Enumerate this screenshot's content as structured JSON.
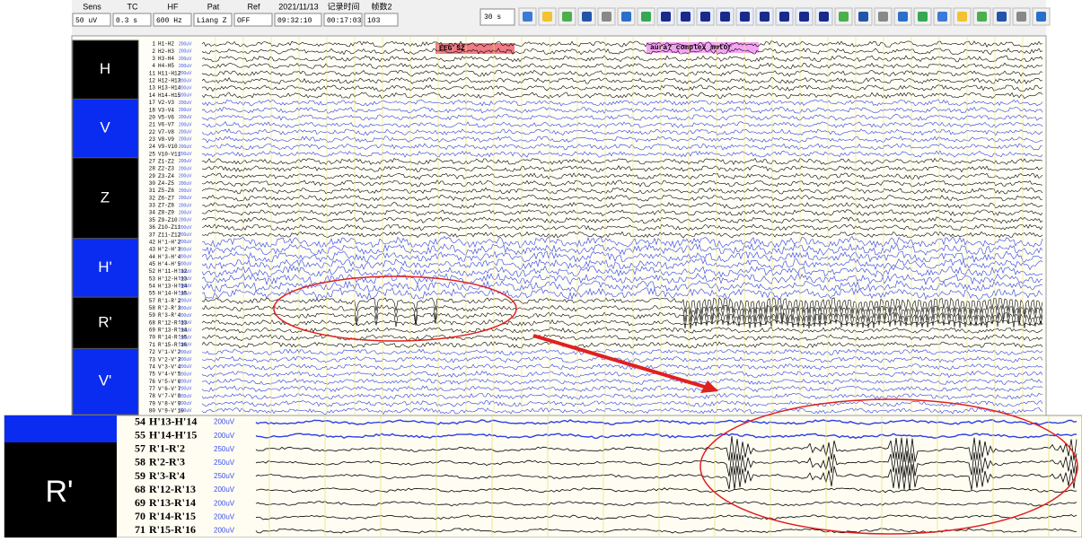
{
  "toolbar": {
    "fields": [
      {
        "header": "Sens",
        "value": "50 uV"
      },
      {
        "header": "TC",
        "value": "0.3 s"
      },
      {
        "header": "HF",
        "value": "600 Hz"
      },
      {
        "header": "Pat",
        "value": "Liang Z"
      },
      {
        "header": "Ref",
        "value": "OFF"
      },
      {
        "header": "2021/11/13",
        "value": "09:32:10"
      },
      {
        "header": "记录时间",
        "value": "00:17:03"
      },
      {
        "header": "帧数2",
        "value": "103"
      }
    ],
    "page_length": "30 s"
  },
  "annotations": [
    {
      "text": "EEG SZ"
    },
    {
      "text": "aura? complex motor"
    }
  ],
  "groups": [
    {
      "label": "H",
      "bg": "#000000",
      "trace": "#000000",
      "channels": [
        {
          "num": "1",
          "name": "H1-H2",
          "scale": "200uV"
        },
        {
          "num": "2",
          "name": "H2-H3",
          "scale": "200uV"
        },
        {
          "num": "3",
          "name": "H3-H4",
          "scale": "200uV"
        },
        {
          "num": "4",
          "name": "H4-H5",
          "scale": "200uV"
        },
        {
          "num": "11",
          "name": "H11-H12",
          "scale": "200uV"
        },
        {
          "num": "12",
          "name": "H12-H13",
          "scale": "200uV"
        },
        {
          "num": "13",
          "name": "H13-H14",
          "scale": "200uV"
        },
        {
          "num": "14",
          "name": "H14-H15",
          "scale": "200uV"
        }
      ]
    },
    {
      "label": "V",
      "bg": "#0a2cf0",
      "trace": "#2b3ee8",
      "channels": [
        {
          "num": "17",
          "name": "V2-V3",
          "scale": "200uV"
        },
        {
          "num": "18",
          "name": "V3-V4",
          "scale": "200uV"
        },
        {
          "num": "20",
          "name": "V5-V6",
          "scale": "200uV"
        },
        {
          "num": "21",
          "name": "V6-V7",
          "scale": "200uV"
        },
        {
          "num": "22",
          "name": "V7-V8",
          "scale": "200uV"
        },
        {
          "num": "23",
          "name": "V8-V9",
          "scale": "200uV"
        },
        {
          "num": "24",
          "name": "V9-V10",
          "scale": "200uV"
        },
        {
          "num": "25",
          "name": "V10-V11",
          "scale": "200uV"
        }
      ]
    },
    {
      "label": "Z",
      "bg": "#000000",
      "trace": "#000000",
      "channels": [
        {
          "num": "27",
          "name": "Z1-Z2",
          "scale": "200uV"
        },
        {
          "num": "28",
          "name": "Z2-Z3",
          "scale": "200uV"
        },
        {
          "num": "29",
          "name": "Z3-Z4",
          "scale": "200uV"
        },
        {
          "num": "30",
          "name": "Z4-Z5",
          "scale": "200uV"
        },
        {
          "num": "31",
          "name": "Z5-Z6",
          "scale": "200uV"
        },
        {
          "num": "32",
          "name": "Z6-Z7",
          "scale": "200uV"
        },
        {
          "num": "33",
          "name": "Z7-Z8",
          "scale": "200uV"
        },
        {
          "num": "34",
          "name": "Z8-Z9",
          "scale": "200uV"
        },
        {
          "num": "35",
          "name": "Z9-Z10",
          "scale": "200uV"
        },
        {
          "num": "36",
          "name": "Z10-Z11",
          "scale": "200uV"
        },
        {
          "num": "37",
          "name": "Z11-Z12",
          "scale": "200uV"
        }
      ]
    },
    {
      "label": "H'",
      "bg": "#0a2cf0",
      "trace": "#2b3ee8",
      "channels": [
        {
          "num": "42",
          "name": "H'1-H'2",
          "scale": "200uV"
        },
        {
          "num": "43",
          "name": "H'2-H'3",
          "scale": "200uV"
        },
        {
          "num": "44",
          "name": "H'3-H'4",
          "scale": "200uV"
        },
        {
          "num": "45",
          "name": "H'4-H'5",
          "scale": "200uV"
        },
        {
          "num": "52",
          "name": "H'11-H'12",
          "scale": "200uV"
        },
        {
          "num": "53",
          "name": "H'12-H'13",
          "scale": "200uV"
        },
        {
          "num": "54",
          "name": "H'13-H'14",
          "scale": "200uV"
        },
        {
          "num": "55",
          "name": "H'14-H'15",
          "scale": "200uV"
        }
      ]
    },
    {
      "label": "R'",
      "bg": "#000000",
      "trace": "#000000",
      "channels": [
        {
          "num": "57",
          "name": "R'1-R'2",
          "scale": "200uV"
        },
        {
          "num": "58",
          "name": "R'2-R'3",
          "scale": "200uV"
        },
        {
          "num": "59",
          "name": "R'3-R'4",
          "scale": "200uV"
        },
        {
          "num": "68",
          "name": "R'12-R'13",
          "scale": "200uV"
        },
        {
          "num": "69",
          "name": "R'13-R'14",
          "scale": "200uV"
        },
        {
          "num": "70",
          "name": "R'14-R'15",
          "scale": "200uV"
        },
        {
          "num": "71",
          "name": "R'15-R'16",
          "scale": "200uV"
        }
      ]
    },
    {
      "label": "V'",
      "bg": "#0a2cf0",
      "trace": "#2b3ee8",
      "channels": [
        {
          "num": "72",
          "name": "V'1-V'2",
          "scale": "200uV"
        },
        {
          "num": "73",
          "name": "V'2-V'3",
          "scale": "200uV"
        },
        {
          "num": "74",
          "name": "V'3-V'4",
          "scale": "200uV"
        },
        {
          "num": "75",
          "name": "V'4-V'5",
          "scale": "200uV"
        },
        {
          "num": "76",
          "name": "V'5-V'6",
          "scale": "200uV"
        },
        {
          "num": "77",
          "name": "V'6-V'7",
          "scale": "200uV"
        },
        {
          "num": "78",
          "name": "V'7-V'8",
          "scale": "200uV"
        },
        {
          "num": "79",
          "name": "V'8-V'9",
          "scale": "200uV"
        },
        {
          "num": "80",
          "name": "V'9-V'10",
          "scale": "200uV"
        }
      ]
    }
  ],
  "inset": {
    "label": "R'",
    "rows": [
      {
        "num": "54",
        "name": "H'13-H'14",
        "scale": "200uV",
        "trace": "#2b3ee8"
      },
      {
        "num": "55",
        "name": "H'14-H'15",
        "scale": "200uV",
        "trace": "#2b3ee8"
      },
      {
        "num": "57",
        "name": "R'1-R'2",
        "scale": "250uV",
        "trace": "#000000"
      },
      {
        "num": "58",
        "name": "R'2-R'3",
        "scale": "250uV",
        "trace": "#000000"
      },
      {
        "num": "59",
        "name": "R'3-R'4",
        "scale": "250uV",
        "trace": "#000000"
      },
      {
        "num": "68",
        "name": "R'12-R'13",
        "scale": "200uV",
        "trace": "#000000"
      },
      {
        "num": "69",
        "name": "R'13-R'14",
        "scale": "200uV",
        "trace": "#000000"
      },
      {
        "num": "70",
        "name": "R'14-R'15",
        "scale": "200uV",
        "trace": "#000000"
      },
      {
        "num": "71",
        "name": "R'15-R'16",
        "scale": "200uV",
        "trace": "#000000"
      }
    ]
  }
}
